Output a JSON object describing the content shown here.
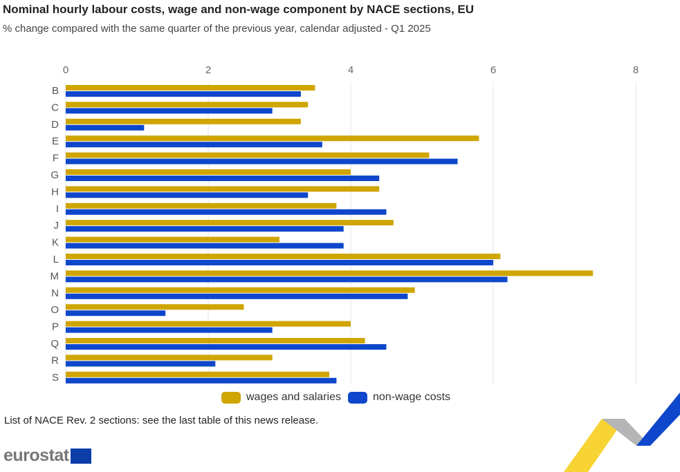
{
  "chart_data": {
    "type": "bar",
    "orientation": "horizontal",
    "title": "Nominal hourly labour costs, wage and non-wage component by NACE sections, EU",
    "subtitle": "% change compared with the same quarter of the previous year, calendar adjusted - Q1 2025",
    "categories": [
      "B",
      "C",
      "D",
      "E",
      "F",
      "G",
      "H",
      "I",
      "J",
      "K",
      "L",
      "M",
      "N",
      "O",
      "P",
      "Q",
      "R",
      "S"
    ],
    "series": [
      {
        "name": "wages and salaries",
        "color": "#cfa500",
        "values": [
          3.5,
          3.4,
          3.3,
          5.8,
          5.1,
          4.0,
          4.4,
          3.8,
          4.6,
          3.0,
          6.1,
          7.4,
          4.9,
          2.5,
          4.0,
          4.2,
          2.9,
          3.7
        ]
      },
      {
        "name": "non-wage costs",
        "color": "#0e47cb",
        "values": [
          3.3,
          2.9,
          1.1,
          3.6,
          5.5,
          4.4,
          3.4,
          4.5,
          3.9,
          3.9,
          6.0,
          6.2,
          4.8,
          1.4,
          2.9,
          4.5,
          2.1,
          3.8
        ]
      }
    ],
    "xlim": [
      0,
      8
    ],
    "xticks": [
      "0",
      "2",
      "4",
      "6",
      "8"
    ],
    "grid": true,
    "legend_position": "bottom"
  },
  "footnote": "List of NACE Rev. 2 sections: see the last table of this news release.",
  "logo_text": "eurostat"
}
